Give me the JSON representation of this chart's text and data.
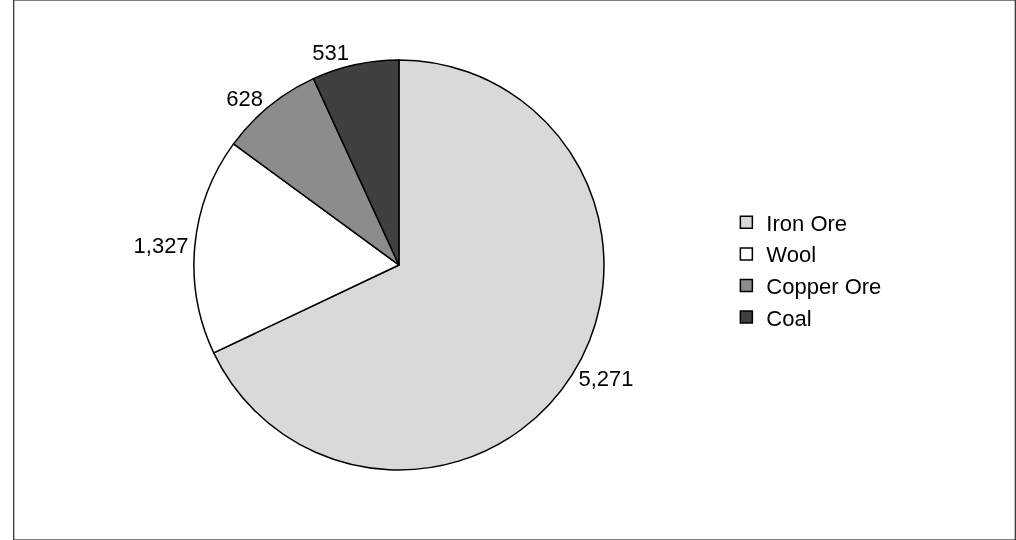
{
  "chart_data": {
    "type": "pie",
    "categories": [
      "Iron Ore",
      "Wool",
      "Copper Ore",
      "Coal"
    ],
    "values": [
      5271,
      1327,
      628,
      531
    ],
    "colors": [
      "#d9d9d9",
      "#ffffff",
      "#8c8c8c",
      "#404040"
    ],
    "value_labels": [
      "5,271",
      "1,327",
      "628",
      "531"
    ],
    "legend": "right"
  }
}
